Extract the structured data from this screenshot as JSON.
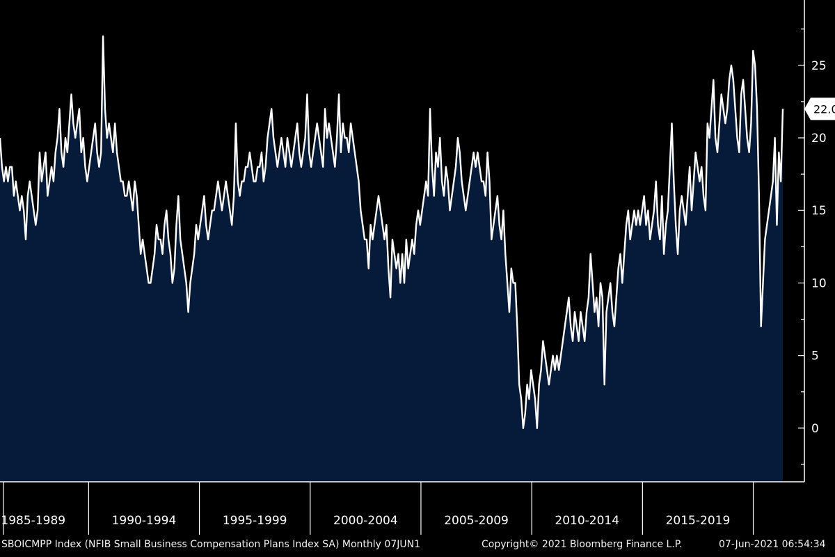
{
  "chart_data": {
    "type": "area",
    "series": [
      {
        "values": [
          20,
          18,
          17,
          18,
          17,
          18,
          18,
          16,
          17,
          16,
          15,
          16,
          15,
          13,
          16,
          17,
          16,
          15,
          14,
          15,
          19,
          17,
          18,
          19,
          16,
          17,
          18,
          17,
          19,
          20,
          22,
          19,
          18,
          20,
          19,
          21,
          23,
          21,
          20,
          21,
          22,
          19,
          20,
          18,
          17,
          18,
          19,
          20,
          21,
          19,
          18,
          19,
          27,
          22,
          20,
          21,
          20,
          19,
          21,
          19,
          18,
          17,
          17,
          16,
          16,
          17,
          16,
          15,
          17,
          16,
          14,
          12,
          13,
          12,
          11,
          10,
          10,
          11,
          12,
          14,
          13,
          13,
          12,
          14,
          15,
          13,
          12,
          10,
          11,
          14,
          16,
          13,
          12,
          11,
          10,
          8,
          10,
          11,
          12,
          14,
          13,
          14,
          15,
          16,
          14,
          13,
          14,
          15,
          15,
          16,
          17,
          16,
          15,
          16,
          17,
          16,
          15,
          14,
          16,
          21,
          17,
          16,
          17,
          17,
          18,
          18,
          19,
          18,
          17,
          17,
          18,
          18,
          19,
          17,
          18,
          20,
          21,
          22,
          20,
          19,
          18,
          19,
          20,
          19,
          18,
          20,
          19,
          18,
          19,
          20,
          21,
          19,
          18,
          19,
          20,
          23,
          19,
          18,
          19,
          20,
          21,
          20,
          19,
          18,
          22,
          20,
          21,
          20,
          19,
          18,
          20,
          23,
          19,
          21,
          20,
          20,
          19,
          21,
          20,
          19,
          18,
          17,
          15,
          14,
          13,
          13,
          11,
          14,
          13,
          14,
          15,
          16,
          15,
          14,
          13,
          14,
          11,
          9,
          13,
          12,
          11,
          12,
          10,
          12,
          10,
          13,
          11,
          12,
          13,
          12,
          14,
          15,
          14,
          15,
          16,
          17,
          16,
          22,
          18,
          16,
          19,
          18,
          20,
          17,
          16,
          18,
          17,
          15,
          16,
          17,
          18,
          20,
          19,
          17,
          16,
          15,
          16,
          17,
          18,
          19,
          18,
          19,
          18,
          17,
          17,
          16,
          19,
          17,
          13,
          14,
          15,
          16,
          14,
          13,
          15,
          12,
          10,
          8,
          11,
          10,
          10,
          7,
          3,
          2,
          0,
          1,
          3,
          2,
          4,
          3,
          2,
          0,
          3,
          4,
          6,
          5,
          4,
          3,
          4,
          5,
          4,
          5,
          4,
          5,
          6,
          7,
          8,
          9,
          7,
          6,
          8,
          7,
          6,
          8,
          7,
          6,
          8,
          9,
          12,
          10,
          8,
          9,
          7,
          10,
          9,
          3,
          8,
          9,
          10,
          8,
          7,
          9,
          11,
          12,
          10,
          12,
          14,
          15,
          13,
          14,
          15,
          14,
          15,
          14,
          15,
          16,
          14,
          15,
          13,
          14,
          15,
          17,
          14,
          13,
          16,
          12,
          14,
          15,
          18,
          21,
          17,
          14,
          12,
          15,
          16,
          15,
          14,
          16,
          18,
          15,
          17,
          19,
          18,
          17,
          18,
          16,
          15,
          21,
          20,
          22,
          24,
          20,
          19,
          21,
          23,
          22,
          21,
          22,
          24,
          25,
          24,
          22,
          20,
          19,
          23,
          24,
          22,
          20,
          19,
          21,
          26,
          25,
          22,
          16,
          7,
          10,
          13,
          14,
          15,
          16,
          17,
          20,
          14,
          19,
          17,
          22
        ],
        "last_value_label": "22.0",
        "line_color": "#ffffff",
        "fill_color": "#061a3a"
      }
    ],
    "y_axis": {
      "ticks": [
        "0",
        "5",
        "10",
        "15",
        "20",
        "25"
      ],
      "tick_values": [
        0,
        5,
        10,
        15,
        20,
        25
      ],
      "ylim": [
        -3.7,
        29.5
      ],
      "position": "right"
    },
    "x_axis": {
      "start": "1986-01",
      "end": "2021-05",
      "period_labels": [
        "1985-1989",
        "1990-1994",
        "1995-1999",
        "2000-2004",
        "2005-2009",
        "2010-2014",
        "2015-2019"
      ],
      "separators": [
        "1990-01",
        "1995-01",
        "2000-01",
        "2005-01",
        "2010-01",
        "2015-01",
        "2020-01"
      ]
    },
    "grid": false,
    "legend": "none",
    "background_color": "#000000",
    "axis_color": "#ffffff"
  },
  "footer": {
    "description": "SBOICMPP Index (NFIB Small Business Compensation Plans Index SA)  Monthly 07JUN1",
    "copyright": "Copyright© 2021 Bloomberg Finance L.P.",
    "timestamp": "07-Jun-2021 06:54:34"
  }
}
